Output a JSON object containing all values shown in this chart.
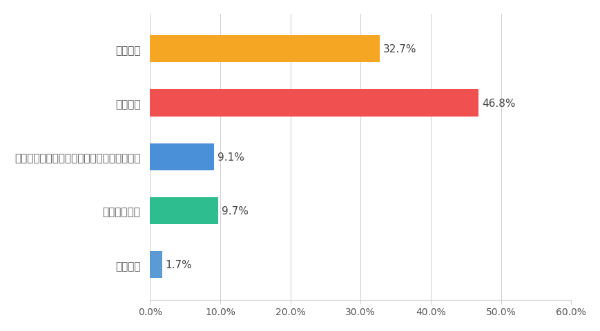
{
  "categories": [
    "よくある",
    "時々ある",
    "ほとんど／全くないが、話してみたいと思う",
    "ほとんどない",
    "全くない"
  ],
  "values": [
    32.7,
    46.8,
    9.1,
    9.7,
    1.7
  ],
  "bar_colors": [
    "#F5A623",
    "#F05050",
    "#4A90D9",
    "#2EBD8E",
    "#5B9BD5"
  ],
  "value_labels": [
    "32.7%",
    "46.8%",
    "9.1%",
    "9.7%",
    "1.7%"
  ],
  "xlim": [
    0,
    60
  ],
  "xticks": [
    0,
    10,
    20,
    30,
    40,
    50,
    60
  ],
  "xtick_labels": [
    "0.0%",
    "10.0%",
    "20.0%",
    "30.0%",
    "40.0%",
    "50.0%",
    "60.0%"
  ],
  "background_color": "#ffffff",
  "bar_height": 0.5,
  "label_fontsize": 11,
  "tick_fontsize": 10,
  "value_fontsize": 11,
  "grid_color": "#d0d0d0",
  "label_color": "#555555",
  "tick_color": "#555555"
}
